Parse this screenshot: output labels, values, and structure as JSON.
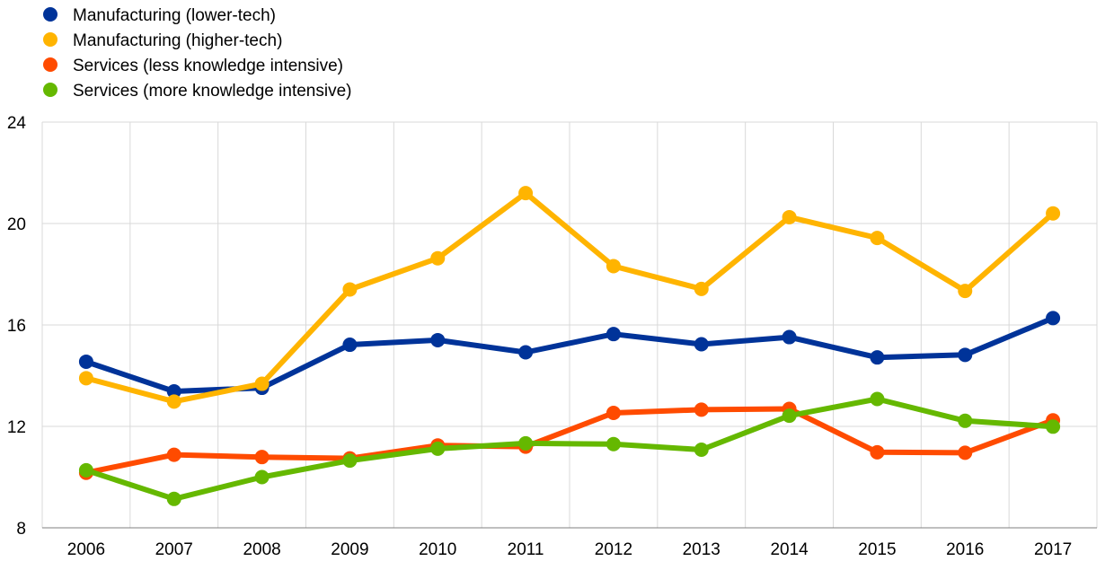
{
  "chart_data": {
    "type": "line",
    "title": "",
    "xlabel": "",
    "ylabel": "",
    "x": [
      "2006",
      "2007",
      "2008",
      "2009",
      "2010",
      "2011",
      "2012",
      "2013",
      "2014",
      "2015",
      "2016",
      "2017"
    ],
    "ylim": [
      8,
      24
    ],
    "yticks": [
      "8",
      "12",
      "16",
      "20",
      "24"
    ],
    "grid": true,
    "legend_position": "top-left",
    "series": [
      {
        "name": "Manufacturing (lower-tech)",
        "color": "#003399",
        "values": [
          14.55,
          13.38,
          13.52,
          15.22,
          15.4,
          14.92,
          15.64,
          15.24,
          15.52,
          14.72,
          14.82,
          16.27
        ]
      },
      {
        "name": "Manufacturing (higher-tech)",
        "color": "#FFB400",
        "values": [
          13.9,
          12.98,
          13.68,
          17.4,
          18.63,
          21.2,
          18.32,
          17.42,
          20.25,
          19.43,
          17.34,
          20.4
        ]
      },
      {
        "name": "Services (less knowledge intensive)",
        "color": "#FF4B00",
        "values": [
          10.17,
          10.88,
          10.79,
          10.74,
          11.25,
          11.2,
          12.53,
          12.66,
          12.69,
          10.98,
          10.96,
          12.24
        ]
      },
      {
        "name": "Services (more knowledge intensive)",
        "color": "#65B800",
        "values": [
          10.27,
          9.14,
          10.0,
          10.65,
          11.12,
          11.33,
          11.3,
          11.08,
          12.42,
          13.08,
          12.22,
          11.99
        ]
      }
    ]
  }
}
